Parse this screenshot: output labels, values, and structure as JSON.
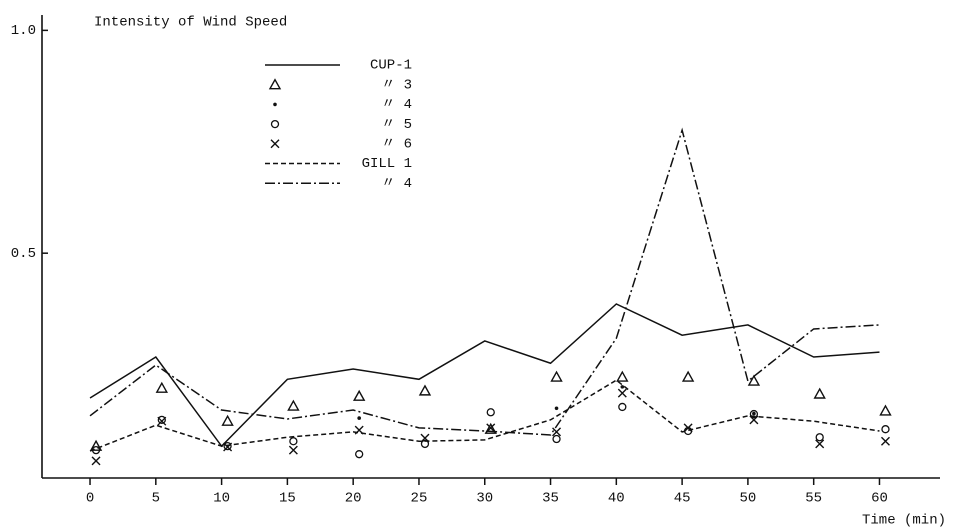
{
  "chart_data": {
    "type": "line",
    "title": "Intensity of Wind Speed",
    "x_label": "Time (min)",
    "x": [
      0,
      5,
      10,
      15,
      20,
      25,
      30,
      35,
      40,
      45,
      50,
      55,
      60
    ],
    "xlim": [
      -3.65,
      64.6
    ],
    "xticks": [
      0,
      5,
      10,
      15,
      20,
      25,
      30,
      35,
      40,
      45,
      50,
      55,
      60
    ],
    "ylim": [
      0,
      1.03
    ],
    "yticks": [
      {
        "value": 1,
        "label": "1.0"
      },
      {
        "value": 0.5,
        "label": "0.5"
      }
    ],
    "series": [
      {
        "name": "CUP-1",
        "color": "#111111",
        "style": "solid",
        "values": [
          0.175,
          0.267,
          0.067,
          0.217,
          0.24,
          0.217,
          0.303,
          0.253,
          0.386,
          0.316,
          0.339,
          0.267,
          0.278
        ]
      },
      {
        "name": "〃 3",
        "color": "#111111",
        "marker": "triangle",
        "values": [
          0.067,
          0.197,
          0.123,
          0.157,
          0.179,
          0.191,
          0.105,
          0.222,
          0.222,
          0.222,
          0.213,
          0.184,
          0.146
        ]
      },
      {
        "name": "〃 4",
        "color": "#111111",
        "marker": "dot",
        "values": [
          null,
          null,
          null,
          null,
          0.13,
          null,
          null,
          0.152,
          0.2,
          null,
          0.14,
          null,
          null
        ]
      },
      {
        "name": "〃 5",
        "color": "#111111",
        "marker": "circle",
        "values": [
          0.058,
          0.126,
          0.067,
          0.078,
          0.049,
          0.072,
          0.143,
          0.083,
          0.155,
          0.101,
          0.139,
          0.087,
          0.105
        ]
      },
      {
        "name": "〃 6",
        "color": "#111111",
        "marker": "x",
        "values": [
          0.034,
          0.123,
          0.065,
          0.058,
          0.103,
          0.085,
          0.108,
          0.099,
          0.186,
          0.108,
          0.126,
          0.072,
          0.078
        ]
      },
      {
        "name": "GILL 1",
        "color": "#111111",
        "style": "dashed",
        "values": [
          0.056,
          0.114,
          0.067,
          0.087,
          0.099,
          0.078,
          0.081,
          0.126,
          0.215,
          0.099,
          0.135,
          0.123,
          0.101
        ]
      },
      {
        "name": "〃 4",
        "color": "#111111",
        "style": "dashdot",
        "values": [
          0.135,
          0.249,
          0.148,
          0.128,
          0.148,
          0.108,
          0.101,
          0.092,
          0.309,
          0.776,
          0.213,
          0.33,
          0.339
        ]
      }
    ]
  }
}
